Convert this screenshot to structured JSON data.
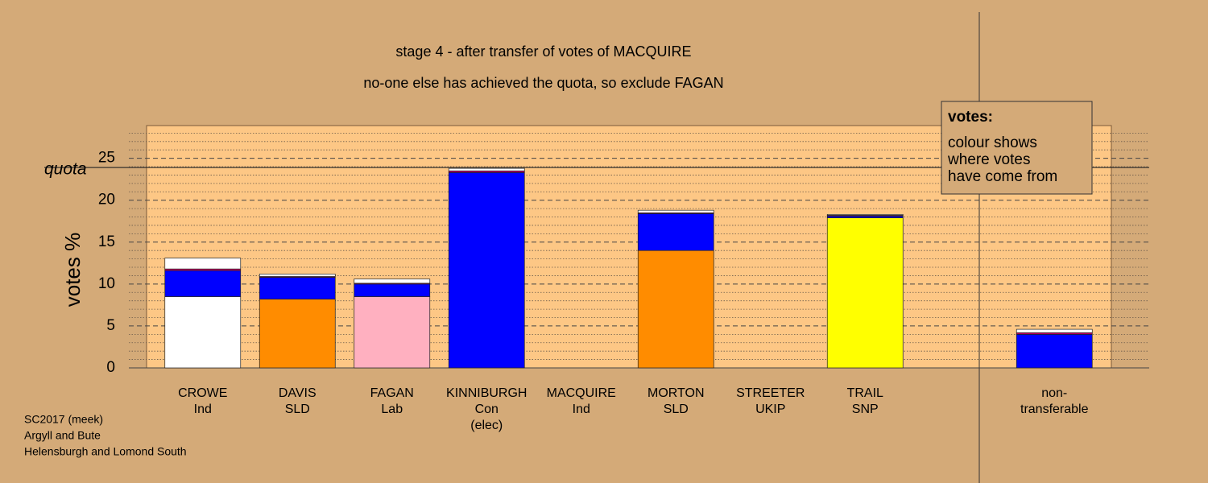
{
  "chart_data": {
    "type": "stacked-bar",
    "title": "stage 4 - after transfer of votes of MACQUIRE",
    "subtitle": "no-one else has achieved the quota, so exclude FAGAN",
    "y_label": "votes %",
    "quota": {
      "value": 23.9,
      "label": "quota"
    },
    "legend_title": "votes:",
    "legend_text": [
      "colour shows",
      "where votes",
      "have come from"
    ],
    "footer": [
      "SC2017 (meek)",
      "Argyll and Bute",
      "Helensburgh and Lomond South"
    ],
    "categories": [
      [
        "CROWE",
        "Ind"
      ],
      [
        "DAVIS",
        "SLD"
      ],
      [
        "FAGAN",
        "Lab"
      ],
      [
        "KINNIBURGH",
        "Con",
        "(elec)"
      ],
      [
        "MACQUIRE",
        "Ind"
      ],
      [
        "MORTON",
        "SLD"
      ],
      [
        "STREETER",
        "UKIP"
      ],
      [
        "TRAIL",
        "SNP"
      ],
      null,
      [
        "non-",
        "transferable"
      ]
    ],
    "series": [
      {
        "colors": [
          "#ffffff",
          "#ff8c00",
          "#ffb0c0",
          "#0000ff",
          "#ffffff",
          "#ff8c00",
          "#a000c0",
          "#ffff00",
          null,
          "#0000ff"
        ],
        "values": [
          8.5,
          8.2,
          8.5,
          23.3,
          0,
          14.0,
          0,
          17.9,
          null,
          4.0
        ]
      },
      {
        "color": "#0000ff",
        "values": [
          3.1,
          2.6,
          1.5,
          0,
          0,
          4.4,
          0,
          0.2,
          null,
          0
        ]
      },
      {
        "color": "#c00060",
        "values": [
          0.2,
          0.1,
          0.1,
          0.2,
          0,
          0.1,
          0,
          0.1,
          null,
          0.2
        ]
      },
      {
        "color": "#ffffff",
        "values": [
          1.3,
          0.3,
          0.5,
          0.3,
          0,
          0.3,
          0,
          0.1,
          null,
          0.4
        ]
      }
    ],
    "ylim": [
      0,
      28.9
    ],
    "yticks": [
      0,
      5,
      10,
      15,
      20,
      25
    ],
    "minor_yticks": [
      1,
      2,
      3,
      4,
      6,
      7,
      8,
      9,
      11,
      12,
      13,
      14,
      16,
      17,
      18,
      19,
      21,
      22,
      23,
      24,
      26,
      27,
      28
    ]
  }
}
